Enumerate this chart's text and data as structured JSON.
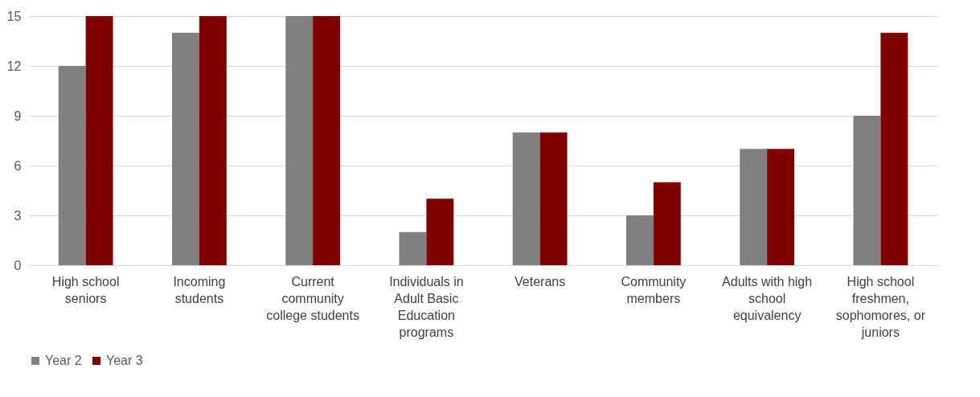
{
  "chart_data": {
    "type": "bar",
    "categories": [
      "High school seniors",
      "Incoming students",
      "Current community college students",
      "Individuals in Adult Basic Education programs",
      "Veterans",
      "Community members",
      "Adults with high school equivalency",
      "High school freshmen, sophomores, or juniors"
    ],
    "series": [
      {
        "name": "Year 2",
        "color": "#808080",
        "values": [
          12,
          14,
          15,
          2,
          8,
          3,
          7,
          9
        ]
      },
      {
        "name": "Year 3",
        "color": "#800000",
        "values": [
          15,
          15,
          15,
          4,
          8,
          5,
          7,
          14
        ]
      }
    ],
    "ylim": [
      0,
      15
    ],
    "yticks": [
      0,
      3,
      6,
      9,
      12,
      15
    ],
    "grid": "y",
    "legend": "bottom"
  }
}
